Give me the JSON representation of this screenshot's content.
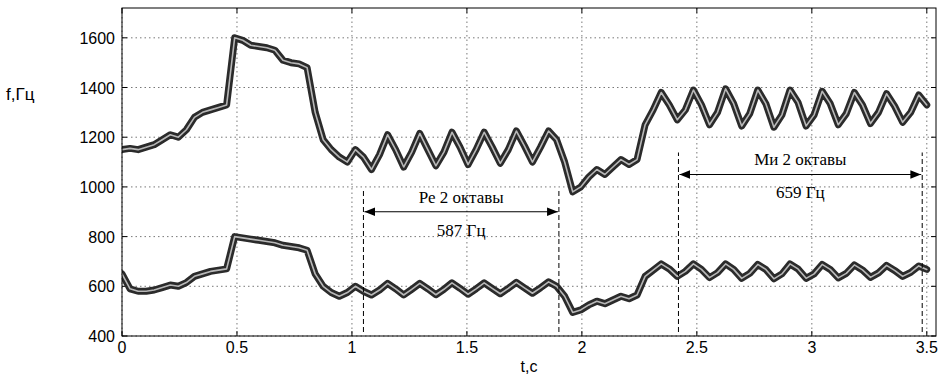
{
  "chart_data": {
    "type": "line",
    "x_label": "t,c",
    "y_label": "f,Гц",
    "xlim": [
      0,
      3.54
    ],
    "ylim": [
      400,
      1720
    ],
    "xticks": [
      0,
      0.5,
      1,
      1.5,
      2,
      2.5,
      3,
      3.5
    ],
    "yticks": [
      400,
      600,
      800,
      1000,
      1200,
      1400,
      1600
    ],
    "grid": true,
    "x": [
      0,
      0.035,
      0.07,
      0.105,
      0.14,
      0.175,
      0.21,
      0.245,
      0.28,
      0.315,
      0.35,
      0.385,
      0.42,
      0.455,
      0.49,
      0.525,
      0.56,
      0.595,
      0.63,
      0.665,
      0.7,
      0.735,
      0.77,
      0.805,
      0.84,
      0.875,
      0.91,
      0.945,
      0.98,
      1.015,
      1.05,
      1.085,
      1.12,
      1.155,
      1.19,
      1.225,
      1.26,
      1.295,
      1.33,
      1.365,
      1.4,
      1.435,
      1.47,
      1.505,
      1.54,
      1.575,
      1.61,
      1.645,
      1.68,
      1.715,
      1.75,
      1.785,
      1.82,
      1.855,
      1.89,
      1.925,
      1.96,
      1.995,
      2.03,
      2.065,
      2.1,
      2.135,
      2.17,
      2.205,
      2.24,
      2.275,
      2.31,
      2.345,
      2.38,
      2.415,
      2.45,
      2.485,
      2.52,
      2.555,
      2.59,
      2.625,
      2.66,
      2.695,
      2.73,
      2.765,
      2.8,
      2.835,
      2.87,
      2.905,
      2.94,
      2.975,
      3.01,
      3.045,
      3.08,
      3.115,
      3.15,
      3.185,
      3.22,
      3.255,
      3.29,
      3.325,
      3.36,
      3.395,
      3.43,
      3.465,
      3.5
    ],
    "series": [
      {
        "color": "#2b2b2b",
        "line_style": "solid",
        "values": [
          650,
          590,
          580,
          580,
          585,
          595,
          605,
          600,
          615,
          640,
          650,
          660,
          665,
          670,
          800,
          795,
          790,
          785,
          780,
          775,
          765,
          760,
          755,
          745,
          650,
          600,
          575,
          560,
          575,
          600,
          580,
          565,
          585,
          612,
          590,
          565,
          588,
          612,
          590,
          566,
          588,
          614,
          592,
          568,
          590,
          614,
          592,
          570,
          592,
          616,
          594,
          572,
          594,
          618,
          600,
          560,
          495,
          505,
          525,
          540,
          530,
          545,
          560,
          550,
          565,
          640,
          665,
          690,
          670,
          640,
          660,
          690,
          668,
          635,
          655,
          690,
          668,
          632,
          652,
          688,
          668,
          630,
          650,
          690,
          670,
          632,
          650,
          688,
          668,
          634,
          652,
          686,
          666,
          636,
          654,
          684,
          664,
          640,
          656,
          682,
          668
        ]
      },
      {
        "color": "#2b2b2b",
        "line_style": "solid",
        "values": [
          1150,
          1155,
          1150,
          1160,
          1170,
          1190,
          1210,
          1200,
          1230,
          1280,
          1300,
          1310,
          1320,
          1330,
          1600,
          1590,
          1570,
          1565,
          1560,
          1550,
          1510,
          1500,
          1495,
          1480,
          1300,
          1190,
          1150,
          1120,
          1100,
          1150,
          1120,
          1070,
          1130,
          1210,
          1150,
          1080,
          1140,
          1215,
          1150,
          1085,
          1140,
          1220,
          1160,
          1090,
          1150,
          1220,
          1160,
          1095,
          1150,
          1225,
          1165,
          1100,
          1160,
          1225,
          1190,
          1100,
          980,
          1000,
          1040,
          1070,
          1050,
          1080,
          1110,
          1090,
          1110,
          1250,
          1310,
          1380,
          1330,
          1270,
          1310,
          1390,
          1330,
          1250,
          1300,
          1395,
          1335,
          1245,
          1295,
          1390,
          1335,
          1240,
          1290,
          1390,
          1340,
          1245,
          1290,
          1385,
          1335,
          1250,
          1295,
          1380,
          1330,
          1255,
          1300,
          1375,
          1325,
          1260,
          1300,
          1370,
          1330
        ]
      }
    ],
    "annotations": [
      {
        "text": "Ре 2 октавы",
        "sub": "587 Гц",
        "x": [
          1.05,
          1.9
        ],
        "y": 900
      },
      {
        "text": "Ми 2 октавы",
        "sub": "659 Гц",
        "x": [
          2.42,
          3.48
        ],
        "y": 1050
      }
    ]
  }
}
